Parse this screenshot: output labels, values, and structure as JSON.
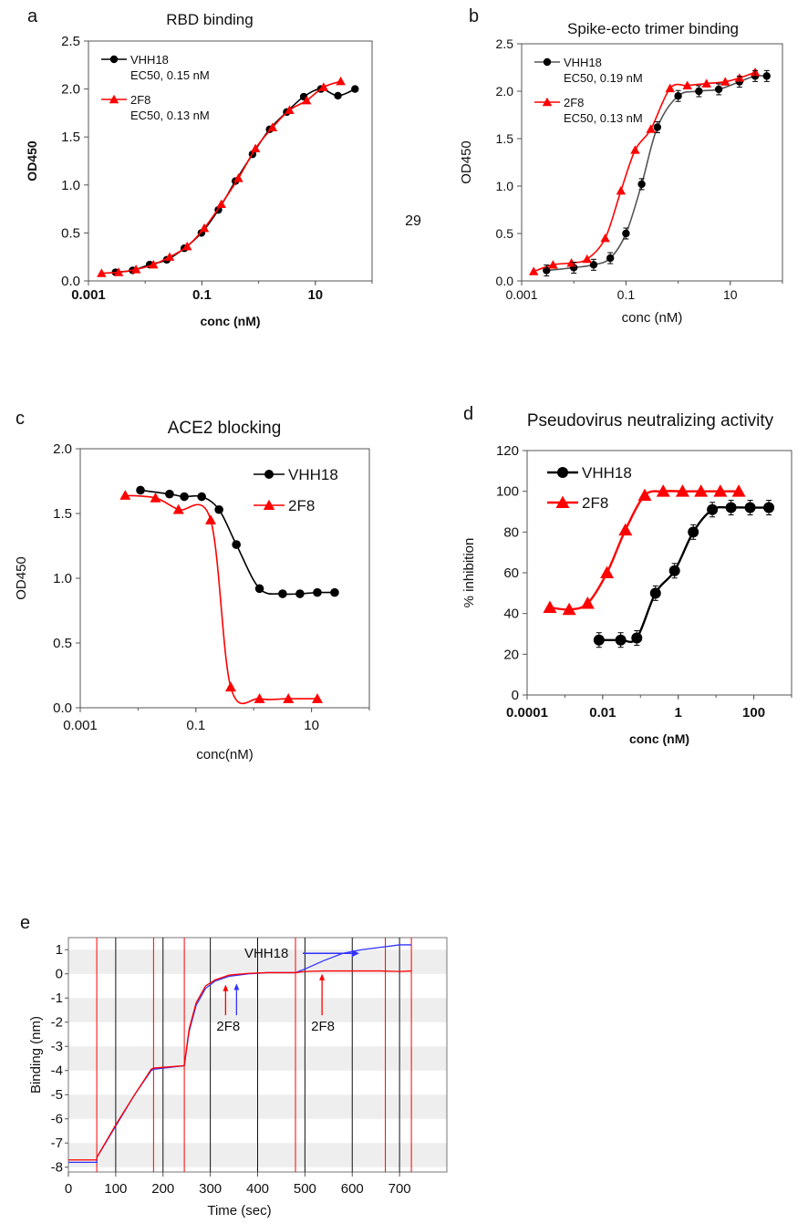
{
  "page_number": "29",
  "colors": {
    "black": "#000000",
    "red": "#ff0000",
    "blue": "#3333ff",
    "gray_curve": "#555555"
  },
  "chart_data": [
    {
      "panel": "a",
      "type": "scatter",
      "title": "RBD binding",
      "xlabel": "conc (nM)",
      "ylabel": "OD450",
      "xscale": "log",
      "xlim": [
        0.001,
        100
      ],
      "ylim": [
        0,
        2.5
      ],
      "x_ticks": [
        "0.001",
        "0.1",
        "10"
      ],
      "y_ticks": [
        "0.0",
        "0.5",
        "1.0",
        "1.5",
        "2.0",
        "2.5"
      ],
      "legend_position": "top-left",
      "series": [
        {
          "name": "VHH18",
          "legend_sub": "EC50, 0.15 nM",
          "color": "#000000",
          "marker": "circle",
          "x": [
            0.003,
            0.006,
            0.012,
            0.024,
            0.049,
            0.098,
            0.195,
            0.39,
            0.78,
            1.56,
            3.13,
            6.25,
            12.5,
            25,
            50
          ],
          "y": [
            0.09,
            0.11,
            0.17,
            0.22,
            0.34,
            0.5,
            0.74,
            1.04,
            1.32,
            1.58,
            1.76,
            1.92,
            2.0,
            1.93,
            2.0
          ]
        },
        {
          "name": "2F8",
          "legend_sub": "EC50, 0.13 nM",
          "color": "#ff0000",
          "marker": "triangle",
          "x": [
            0.0017,
            0.0034,
            0.0069,
            0.014,
            0.027,
            0.055,
            0.11,
            0.22,
            0.44,
            0.88,
            1.76,
            3.5,
            7,
            14,
            28
          ],
          "y": [
            0.08,
            0.09,
            0.12,
            0.17,
            0.25,
            0.36,
            0.55,
            0.8,
            1.07,
            1.38,
            1.6,
            1.78,
            1.88,
            2.02,
            2.08
          ]
        }
      ]
    },
    {
      "panel": "b",
      "type": "scatter",
      "title": "Spike-ecto trimer binding",
      "xlabel": "conc (nM)",
      "ylabel": "OD450",
      "xscale": "log",
      "xlim": [
        0.001,
        100
      ],
      "ylim": [
        0,
        2.5
      ],
      "x_ticks": [
        "0.001",
        "0.1",
        "10"
      ],
      "y_ticks": [
        "0.0",
        "0.5",
        "1.0",
        "1.5",
        "2.0",
        "2.5"
      ],
      "legend_position": "top-left",
      "series": [
        {
          "name": "VHH18",
          "legend_sub": "EC50, 0.19 nM",
          "color": "#000000",
          "marker": "circle",
          "x": [
            0.003,
            0.01,
            0.024,
            0.05,
            0.1,
            0.2,
            0.4,
            1,
            2.5,
            6,
            15,
            30,
            50
          ],
          "y": [
            0.11,
            0.14,
            0.17,
            0.24,
            0.5,
            1.02,
            1.62,
            1.95,
            2.0,
            2.02,
            2.1,
            2.16,
            2.16
          ]
        },
        {
          "name": "2F8",
          "legend_sub": "EC50, 0.13 nM",
          "color": "#ff0000",
          "marker": "triangle",
          "x": [
            0.0017,
            0.004,
            0.009,
            0.018,
            0.04,
            0.08,
            0.15,
            0.3,
            0.7,
            1.5,
            3.5,
            8,
            15,
            30
          ],
          "y": [
            0.1,
            0.17,
            0.19,
            0.23,
            0.45,
            0.95,
            1.38,
            1.6,
            2.03,
            2.06,
            2.08,
            2.1,
            2.14,
            2.2
          ]
        }
      ]
    },
    {
      "panel": "c",
      "type": "scatter",
      "title": "ACE2 blocking",
      "xlabel": "conc(nM)",
      "ylabel": "OD450",
      "xscale": "log",
      "xlim": [
        0.001,
        100
      ],
      "ylim": [
        0,
        2.0
      ],
      "x_ticks": [
        "0.001",
        "0.1",
        "10"
      ],
      "y_ticks": [
        "0.0",
        "0.5",
        "1.0",
        "1.5",
        "2.0"
      ],
      "legend_position": "top-right",
      "series": [
        {
          "name": "VHH18",
          "color": "#000000",
          "marker": "circle",
          "x": [
            0.011,
            0.035,
            0.063,
            0.126,
            0.251,
            0.501,
            1.26,
            3.16,
            6.3,
            12.6,
            25.1
          ],
          "y": [
            1.68,
            1.65,
            1.63,
            1.63,
            1.53,
            1.26,
            0.92,
            0.88,
            0.88,
            0.89,
            0.89
          ]
        },
        {
          "name": "2F8",
          "color": "#ff0000",
          "marker": "triangle",
          "x": [
            0.006,
            0.02,
            0.05,
            0.18,
            0.4,
            1.26,
            3.98,
            12.6
          ],
          "y": [
            1.64,
            1.62,
            1.53,
            1.45,
            0.16,
            0.07,
            0.07,
            0.07
          ]
        }
      ]
    },
    {
      "panel": "d",
      "type": "scatter",
      "title": "Pseudovirus neutralizing activity",
      "xlabel": "conc (nM)",
      "ylabel": "% inhibition",
      "xscale": "log",
      "xlim": [
        0.0001,
        1000
      ],
      "ylim": [
        0,
        120
      ],
      "x_ticks": [
        "0.0001",
        "0.01",
        "1",
        "100"
      ],
      "y_ticks": [
        "0",
        "20",
        "40",
        "60",
        "80",
        "100",
        "120"
      ],
      "legend_position": "top-left",
      "series": [
        {
          "name": "VHH18",
          "color": "#000000",
          "marker": "circle",
          "x": [
            0.008,
            0.03,
            0.08,
            0.25,
            0.8,
            2.5,
            8,
            25,
            80,
            250
          ],
          "y": [
            27,
            27,
            28,
            50,
            61,
            80,
            91,
            92,
            92,
            92
          ]
        },
        {
          "name": "2F8",
          "color": "#ff0000",
          "marker": "triangle",
          "x": [
            0.0004,
            0.0013,
            0.004,
            0.013,
            0.04,
            0.13,
            0.4,
            1.3,
            4,
            13,
            40
          ],
          "y": [
            43,
            42,
            45,
            60,
            81,
            98,
            100,
            100,
            100,
            100,
            100
          ]
        }
      ]
    },
    {
      "panel": "e",
      "type": "line",
      "xlabel": "Time (sec)",
      "ylabel": "Binding (nm)",
      "xlim": [
        0,
        800
      ],
      "ylim": [
        -8.2,
        1.5
      ],
      "x_ticks": [
        "0",
        "100",
        "200",
        "300",
        "400",
        "500",
        "600",
        "700"
      ],
      "y_ticks": [
        "1",
        "0",
        "-1",
        "-2",
        "-3",
        "-4",
        "-5",
        "-6",
        "-7",
        "-8"
      ],
      "red_step_markers": [
        60,
        180,
        245,
        480,
        670,
        725
      ],
      "black_step_markers": [
        100,
        200,
        300,
        400,
        500,
        600,
        700
      ],
      "annotations": [
        {
          "text": "VHH18",
          "x": 530,
          "y": 1.0
        },
        {
          "text": "2F8",
          "x": 340,
          "y": -1.6
        },
        {
          "text": "2F8",
          "x": 540,
          "y": -1.6
        }
      ],
      "series": [
        {
          "name": "VHH18",
          "color": "#3333ff",
          "x": [
            0,
            60,
            60,
            100,
            140,
            175,
            180,
            245,
            255,
            270,
            290,
            310,
            340,
            380,
            420,
            480,
            500,
            540,
            580,
            620,
            660,
            700,
            725
          ],
          "y": [
            -7.8,
            -7.8,
            -7.6,
            -6.3,
            -5.0,
            -4.0,
            -3.95,
            -3.8,
            -2.4,
            -1.3,
            -0.6,
            -0.3,
            -0.1,
            0.0,
            0.05,
            0.05,
            0.2,
            0.55,
            0.85,
            1.0,
            1.1,
            1.2,
            1.2
          ]
        },
        {
          "name": "2F8",
          "color": "#ff0000",
          "x": [
            0,
            60,
            60,
            100,
            140,
            175,
            180,
            245,
            255,
            270,
            290,
            310,
            340,
            380,
            420,
            480,
            500,
            540,
            580,
            620,
            660,
            700,
            725
          ],
          "y": [
            -7.7,
            -7.7,
            -7.6,
            -6.25,
            -5.0,
            -3.95,
            -3.9,
            -3.8,
            -2.3,
            -1.2,
            -0.5,
            -0.25,
            -0.05,
            0.02,
            0.05,
            0.05,
            0.1,
            0.12,
            0.12,
            0.12,
            0.12,
            0.1,
            0.12
          ]
        }
      ]
    }
  ]
}
